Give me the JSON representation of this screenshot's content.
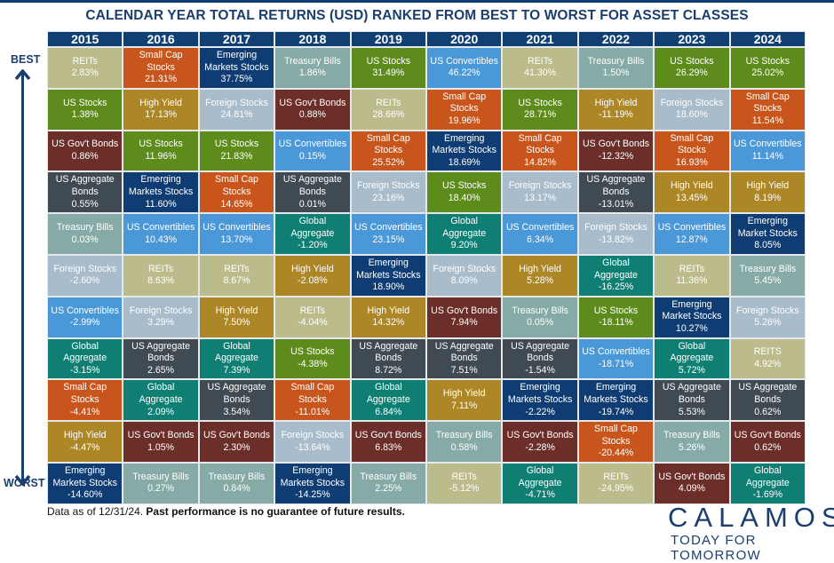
{
  "title": "CALENDAR YEAR TOTAL RETURNS (USD) RANKED FROM BEST TO WORST FOR ASSET CLASSES",
  "labels": {
    "best": "BEST",
    "worst": "WORST"
  },
  "footer": {
    "note": "Data as of 12/31/24.",
    "disclaimer": "Past performance is no guarantee of future results."
  },
  "brand": {
    "logo": "CALAMOS",
    "tagline": "TODAY FOR TOMORROW"
  },
  "colors": {
    "REITs": "#bcbb8c",
    "Small Cap Stocks": "#c8561c",
    "Emerging Markets Stocks": "#0f3d73",
    "Treasury Bills": "#86aaa6",
    "US Stocks": "#5e8c1c",
    "US Convertibles": "#4a98d8",
    "US Gov't Bonds": "#6b2e28",
    "High Yield": "#ad8726",
    "Foreign Stocks": "#a9bccb",
    "US Aggregate Bonds": "#3f4a52",
    "Global Aggregate": "#0f7f74",
    "header": "#0f3f73"
  },
  "chart_data": {
    "type": "table",
    "title": "CALENDAR YEAR TOTAL RETURNS (USD) RANKED FROM BEST TO WORST FOR ASSET CLASSES",
    "categories": [
      "2015",
      "2016",
      "2017",
      "2018",
      "2019",
      "2020",
      "2021",
      "2022",
      "2023",
      "2024"
    ],
    "columns": [
      {
        "year": "2015",
        "cells": [
          {
            "asset": "REITs",
            "label": "REITs",
            "value": "2.83%"
          },
          {
            "asset": "US Stocks",
            "label": "US Stocks",
            "value": "1.38%"
          },
          {
            "asset": "US Gov't Bonds",
            "label": "US Gov't Bonds",
            "value": "0.86%"
          },
          {
            "asset": "US Aggregate Bonds",
            "label": "US Aggregate\nBonds",
            "value": "0.55%"
          },
          {
            "asset": "Treasury Bills",
            "label": "Treasury Bills",
            "value": "0.03%"
          },
          {
            "asset": "Foreign Stocks",
            "label": "Foreign Stocks",
            "value": "-2.60%"
          },
          {
            "asset": "US Convertibles",
            "label": "US Convertibles",
            "value": "-2.99%"
          },
          {
            "asset": "Global Aggregate",
            "label": "Global\nAggregate",
            "value": "-3.15%"
          },
          {
            "asset": "Small Cap Stocks",
            "label": "Small Cap\nStocks",
            "value": "-4.41%"
          },
          {
            "asset": "High Yield",
            "label": "High Yield",
            "value": "-4.47%"
          },
          {
            "asset": "Emerging Markets Stocks",
            "label": "Emerging\nMarkets Stocks",
            "value": "-14.60%"
          }
        ]
      },
      {
        "year": "2016",
        "cells": [
          {
            "asset": "Small Cap Stocks",
            "label": "Small Cap\nStocks",
            "value": "21.31%"
          },
          {
            "asset": "High Yield",
            "label": "High Yield",
            "value": "17.13%"
          },
          {
            "asset": "US Stocks",
            "label": "US Stocks",
            "value": "11.96%"
          },
          {
            "asset": "Emerging Markets Stocks",
            "label": "Emerging\nMarkets Stocks",
            "value": "11.60%"
          },
          {
            "asset": "US Convertibles",
            "label": "US Convertibles",
            "value": "10.43%"
          },
          {
            "asset": "REITs",
            "label": "REITs",
            "value": "8.63%"
          },
          {
            "asset": "Foreign Stocks",
            "label": "Foreign Stocks",
            "value": "3.29%"
          },
          {
            "asset": "US Aggregate Bonds",
            "label": "US Aggregate\nBonds",
            "value": "2.65%"
          },
          {
            "asset": "Global Aggregate",
            "label": "Global\nAggregate",
            "value": "2.09%"
          },
          {
            "asset": "US Gov't Bonds",
            "label": "US Gov't Bonds",
            "value": "1.05%"
          },
          {
            "asset": "Treasury Bills",
            "label": "Treasury Bills",
            "value": "0.27%"
          }
        ]
      },
      {
        "year": "2017",
        "cells": [
          {
            "asset": "Emerging Markets Stocks",
            "label": "Emerging\nMarkets Stocks",
            "value": "37.75%"
          },
          {
            "asset": "Foreign Stocks",
            "label": "Foreign Stocks",
            "value": "24.81%"
          },
          {
            "asset": "US Stocks",
            "label": "US Stocks",
            "value": "21.83%"
          },
          {
            "asset": "Small Cap Stocks",
            "label": "Small Cap\nStocks",
            "value": "14.65%"
          },
          {
            "asset": "US Convertibles",
            "label": "US Convertibles",
            "value": "13.70%"
          },
          {
            "asset": "REITs",
            "label": "REITs",
            "value": "8.67%"
          },
          {
            "asset": "High Yield",
            "label": "High Yield",
            "value": "7.50%"
          },
          {
            "asset": "Global Aggregate",
            "label": "Global\nAggregate",
            "value": "7.39%"
          },
          {
            "asset": "US Aggregate Bonds",
            "label": "US Aggregate\nBonds",
            "value": "3.54%"
          },
          {
            "asset": "US Gov't Bonds",
            "label": "US Gov't Bonds",
            "value": "2.30%"
          },
          {
            "asset": "Treasury Bills",
            "label": "Treasury Bills",
            "value": "0.84%"
          }
        ]
      },
      {
        "year": "2018",
        "cells": [
          {
            "asset": "Treasury Bills",
            "label": "Treasury Bills",
            "value": "1.86%"
          },
          {
            "asset": "US Gov't Bonds",
            "label": "US Gov't Bonds",
            "value": "0.88%"
          },
          {
            "asset": "US Convertibles",
            "label": "US Convertibles",
            "value": "0.15%"
          },
          {
            "asset": "US Aggregate Bonds",
            "label": "US Aggregate\nBonds",
            "value": "0.01%"
          },
          {
            "asset": "Global Aggregate",
            "label": "Global\nAggregate",
            "value": "-1.20%"
          },
          {
            "asset": "High Yield",
            "label": "High Yield",
            "value": "-2.08%"
          },
          {
            "asset": "REITs",
            "label": "REITs",
            "value": "-4.04%"
          },
          {
            "asset": "US Stocks",
            "label": "US Stocks",
            "value": "-4.38%"
          },
          {
            "asset": "Small Cap Stocks",
            "label": "Small Cap\nStocks",
            "value": "-11.01%"
          },
          {
            "asset": "Foreign Stocks",
            "label": "Foreign Stocks",
            "value": "-13.64%"
          },
          {
            "asset": "Emerging Markets Stocks",
            "label": "Emerging\nMarkets Stocks",
            "value": "-14.25%"
          }
        ]
      },
      {
        "year": "2019",
        "cells": [
          {
            "asset": "US Stocks",
            "label": "US Stocks",
            "value": "31.49%"
          },
          {
            "asset": "REITs",
            "label": "REITs",
            "value": "28.66%"
          },
          {
            "asset": "Small Cap Stocks",
            "label": "Small Cap\nStocks",
            "value": "25.52%"
          },
          {
            "asset": "Foreign Stocks",
            "label": "Foreign Stocks",
            "value": "23.16%"
          },
          {
            "asset": "US Convertibles",
            "label": "US Convertibles",
            "value": "23.15%"
          },
          {
            "asset": "Emerging Markets Stocks",
            "label": "Emerging\nMarkets Stocks",
            "value": "18.90%"
          },
          {
            "asset": "High Yield",
            "label": "High Yield",
            "value": "14.32%"
          },
          {
            "asset": "US Aggregate Bonds",
            "label": "US Aggregate\nBonds",
            "value": "8.72%"
          },
          {
            "asset": "Global Aggregate",
            "label": "Global\nAggregate",
            "value": "6.84%"
          },
          {
            "asset": "US Gov't Bonds",
            "label": "US Gov't Bonds",
            "value": "6.83%"
          },
          {
            "asset": "Treasury Bills",
            "label": "Treasury Bills",
            "value": "2.25%"
          }
        ]
      },
      {
        "year": "2020",
        "cells": [
          {
            "asset": "US Convertibles",
            "label": "US Convertibles",
            "value": "46.22%"
          },
          {
            "asset": "Small Cap Stocks",
            "label": "Small Cap\nStocks",
            "value": "19.96%"
          },
          {
            "asset": "Emerging Markets Stocks",
            "label": "Emerging\nMarkets Stocks",
            "value": "18.69%"
          },
          {
            "asset": "US Stocks",
            "label": "US Stocks",
            "value": "18.40%"
          },
          {
            "asset": "Global Aggregate",
            "label": "Global\nAggregate",
            "value": "9.20%"
          },
          {
            "asset": "Foreign Stocks",
            "label": "Foreign Stocks",
            "value": "8.09%"
          },
          {
            "asset": "US Gov't Bonds",
            "label": "US Gov't Bonds",
            "value": "7.94%"
          },
          {
            "asset": "US Aggregate Bonds",
            "label": "US Aggregate\nBonds",
            "value": "7.51%"
          },
          {
            "asset": "High Yield",
            "label": "High Yield",
            "value": "7.11%"
          },
          {
            "asset": "Treasury Bills",
            "label": "Treasury Bills",
            "value": "0.58%"
          },
          {
            "asset": "REITs",
            "label": "REITs",
            "value": "-5.12%"
          }
        ]
      },
      {
        "year": "2021",
        "cells": [
          {
            "asset": "REITs",
            "label": "REITs",
            "value": "41.30%"
          },
          {
            "asset": "US Stocks",
            "label": "US Stocks",
            "value": "28.71%"
          },
          {
            "asset": "Small Cap Stocks",
            "label": "Small Cap\nStocks",
            "value": "14.82%"
          },
          {
            "asset": "Foreign Stocks",
            "label": "Foreign Stocks",
            "value": "13.17%"
          },
          {
            "asset": "US Convertibles",
            "label": "US Convertibles",
            "value": "6.34%"
          },
          {
            "asset": "High Yield",
            "label": "High Yield",
            "value": "5.28%"
          },
          {
            "asset": "Treasury Bills",
            "label": "Treasury Bills",
            "value": "0.05%"
          },
          {
            "asset": "US Aggregate Bonds",
            "label": "US Aggregate\nBonds",
            "value": "-1.54%"
          },
          {
            "asset": "Emerging Markets Stocks",
            "label": "Emerging\nMarkets Stocks",
            "value": "-2.22%"
          },
          {
            "asset": "US Gov't Bonds",
            "label": "US Gov't Bonds",
            "value": "-2.28%"
          },
          {
            "asset": "Global Aggregate",
            "label": "Global\nAggregate",
            "value": "-4.71%"
          }
        ]
      },
      {
        "year": "2022",
        "cells": [
          {
            "asset": "Treasury Bills",
            "label": "Treasury Bills",
            "value": "1.50%"
          },
          {
            "asset": "High Yield",
            "label": "High Yield",
            "value": "-11.19%"
          },
          {
            "asset": "US Gov't Bonds",
            "label": "US Gov't Bonds",
            "value": "-12.32%"
          },
          {
            "asset": "US Aggregate Bonds",
            "label": "US Aggregate\nBonds",
            "value": "-13.01%"
          },
          {
            "asset": "Foreign Stocks",
            "label": "Foreign Stocks",
            "value": "-13.82%"
          },
          {
            "asset": "Global Aggregate",
            "label": "Global\nAggregate",
            "value": "-16.25%"
          },
          {
            "asset": "US Stocks",
            "label": "US Stocks",
            "value": "-18.11%"
          },
          {
            "asset": "US Convertibles",
            "label": "US Convertibles",
            "value": "-18.71%"
          },
          {
            "asset": "Emerging Markets Stocks",
            "label": "Emerging\nMarkets Stocks",
            "value": "-19.74%"
          },
          {
            "asset": "Small Cap Stocks",
            "label": "Small Cap\nStocks",
            "value": "-20.44%"
          },
          {
            "asset": "REITs",
            "label": "REITs",
            "value": "-24.95%"
          }
        ]
      },
      {
        "year": "2023",
        "cells": [
          {
            "asset": "US Stocks",
            "label": "US Stocks",
            "value": "26.29%"
          },
          {
            "asset": "Foreign Stocks",
            "label": "Foreign Stocks",
            "value": "18.60%"
          },
          {
            "asset": "Small Cap Stocks",
            "label": "Small Cap\nStocks",
            "value": "16.93%"
          },
          {
            "asset": "High Yield",
            "label": "High Yield",
            "value": "13.45%"
          },
          {
            "asset": "US Convertibles",
            "label": "US Convertibles",
            "value": "12.87%"
          },
          {
            "asset": "REITs",
            "label": "REITs",
            "value": "11.36%"
          },
          {
            "asset": "Emerging Markets Stocks",
            "label": "Emerging\nMarket Stocks",
            "value": "10.27%"
          },
          {
            "asset": "Global Aggregate",
            "label": "Global\nAggregate",
            "value": "5.72%"
          },
          {
            "asset": "US Aggregate Bonds",
            "label": "US Aggregate\nBonds",
            "value": "5.53%"
          },
          {
            "asset": "Treasury Bills",
            "label": "Treasury Bills",
            "value": "5.26%"
          },
          {
            "asset": "US Gov't Bonds",
            "label": "US Gov't Bonds",
            "value": "4.09%"
          }
        ]
      },
      {
        "year": "2024",
        "cells": [
          {
            "asset": "US Stocks",
            "label": "US Stocks",
            "value": "25.02%"
          },
          {
            "asset": "Small Cap Stocks",
            "label": "Small Cap\nStocks",
            "value": "11.54%"
          },
          {
            "asset": "US Convertibles",
            "label": "US Convertibles",
            "value": "11.14%"
          },
          {
            "asset": "High Yield",
            "label": "High Yield",
            "value": "8.19%"
          },
          {
            "asset": "Emerging Markets Stocks",
            "label": "Emerging\nMarket Stocks",
            "value": "8.05%"
          },
          {
            "asset": "Treasury Bills",
            "label": "Treasury Bills",
            "value": "5.45%"
          },
          {
            "asset": "Foreign Stocks",
            "label": "Foreign Stocks",
            "value": "5.26%"
          },
          {
            "asset": "REITs",
            "label": "REITS",
            "value": "4.92%"
          },
          {
            "asset": "US Aggregate Bonds",
            "label": "US Aggregate\nBonds",
            "value": "0.62%"
          },
          {
            "asset": "US Gov't Bonds",
            "label": "US Gov't Bonds",
            "value": "0.62%"
          },
          {
            "asset": "Global Aggregate",
            "label": "Global\nAggregate",
            "value": "-1.69%"
          }
        ]
      }
    ]
  }
}
